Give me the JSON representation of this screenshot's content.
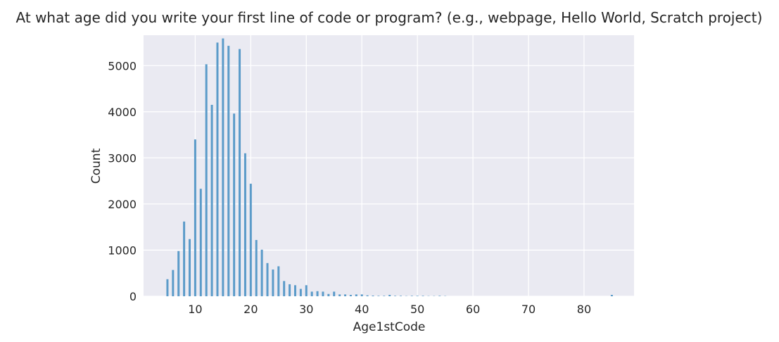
{
  "chart_data": {
    "type": "bar",
    "title": "At what age did you write your first line of code or program? (e.g., webpage, Hello World, Scratch project)",
    "xlabel": "Age1stCode",
    "ylabel": "Count",
    "xlim": [
      0.7,
      89
    ],
    "ylim": [
      0,
      5660
    ],
    "xticks": [
      10,
      20,
      30,
      40,
      50,
      60,
      70,
      80
    ],
    "yticks": [
      0,
      1000,
      2000,
      3000,
      4000,
      5000
    ],
    "grid": true,
    "bar_color": "#5b9bc9",
    "background": "#eaeaf2",
    "x": [
      5,
      6,
      7,
      8,
      9,
      10,
      11,
      12,
      13,
      14,
      15,
      16,
      17,
      18,
      19,
      20,
      21,
      22,
      23,
      24,
      25,
      26,
      27,
      28,
      29,
      30,
      31,
      32,
      33,
      34,
      35,
      36,
      37,
      38,
      39,
      40,
      41,
      42,
      43,
      44,
      45,
      46,
      47,
      48,
      49,
      50,
      51,
      52,
      53,
      54,
      55,
      85
    ],
    "values": [
      370,
      570,
      980,
      1620,
      1240,
      3400,
      2330,
      5030,
      4150,
      5500,
      5590,
      5430,
      3960,
      5360,
      3100,
      2440,
      1220,
      1010,
      720,
      580,
      650,
      330,
      260,
      240,
      160,
      240,
      100,
      110,
      100,
      50,
      100,
      40,
      40,
      30,
      40,
      40,
      20,
      15,
      10,
      10,
      30,
      10,
      10,
      5,
      10,
      10,
      10,
      5,
      5,
      10,
      5,
      30
    ]
  }
}
